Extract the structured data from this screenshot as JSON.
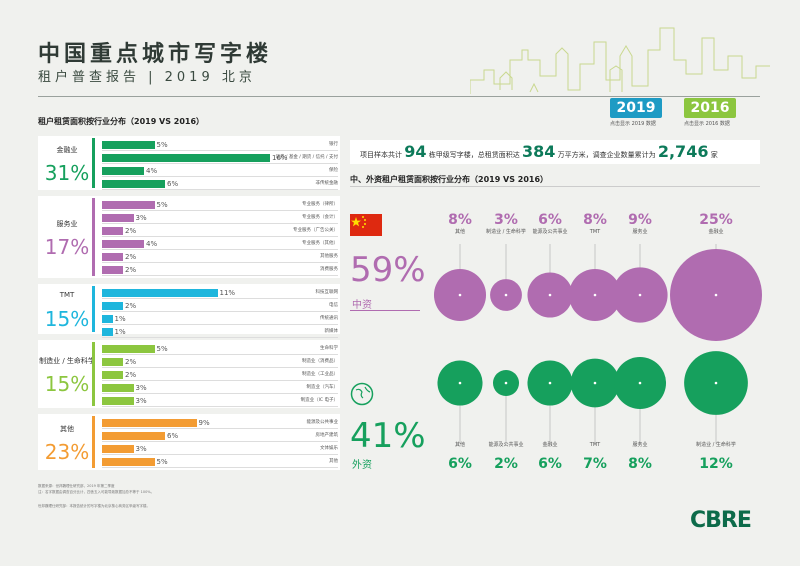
{
  "header": {
    "title": "中国重点城市写字楼",
    "subtitle": "租户普查报告 | 2019 北京"
  },
  "left_section_title": "租户租赁面积按行业分布（2019 VS 2016）",
  "right_section_title": "中、外资租户租赁面积按行业分布（2019 VS 2016）",
  "year_buttons": [
    {
      "label": "2019",
      "caption": "点击显示 2019 数据"
    },
    {
      "label": "2016",
      "caption": "点击显示 2016 数据"
    }
  ],
  "groups": [
    {
      "name": "金融业",
      "pct": "31%",
      "color": "#16a05d",
      "rows": [
        {
          "value": "5%",
          "pct": 5,
          "name": "银行"
        },
        {
          "value": "16%",
          "pct": 16,
          "name": "证券 / 基金 / 期货 / 信托 / 支付"
        },
        {
          "value": "4%",
          "pct": 4,
          "name": "保险"
        },
        {
          "value": "6%",
          "pct": 6,
          "name": "非传统金融"
        }
      ]
    },
    {
      "name": "服务业",
      "pct": "17%",
      "color": "#b06cb0",
      "rows": [
        {
          "value": "5%",
          "pct": 5,
          "name": "专业服务（律所）"
        },
        {
          "value": "3%",
          "pct": 3,
          "name": "专业服务（会计）"
        },
        {
          "value": "2%",
          "pct": 2,
          "name": "专业服务（广告公关）"
        },
        {
          "value": "4%",
          "pct": 4,
          "name": "专业服务（其他）"
        },
        {
          "value": "2%",
          "pct": 2,
          "name": "其他服务"
        },
        {
          "value": "2%",
          "pct": 2,
          "name": "消费服务"
        }
      ]
    },
    {
      "name": "TMT",
      "pct": "15%",
      "color": "#1eb6dd",
      "rows": [
        {
          "value": "11%",
          "pct": 11,
          "name": "科技互联网"
        },
        {
          "value": "2%",
          "pct": 2,
          "name": "电信"
        },
        {
          "value": "1%",
          "pct": 1,
          "name": "传统通讯"
        },
        {
          "value": "1%",
          "pct": 1,
          "name": "新媒体"
        }
      ]
    },
    {
      "name": "制造业 / 生命科学",
      "pct": "15%",
      "color": "#8cc63f",
      "rows": [
        {
          "value": "5%",
          "pct": 5,
          "name": "生命科学"
        },
        {
          "value": "2%",
          "pct": 2,
          "name": "制造业（消费品）"
        },
        {
          "value": "2%",
          "pct": 2,
          "name": "制造业（工业品）"
        },
        {
          "value": "3%",
          "pct": 3,
          "name": "制造业（汽车）"
        },
        {
          "value": "3%",
          "pct": 3,
          "name": "制造业（IC 电子）"
        }
      ]
    },
    {
      "name": "其他",
      "pct": "23%",
      "color": "#f39c33",
      "rows": [
        {
          "value": "9%",
          "pct": 9,
          "name": "能源及公共事业"
        },
        {
          "value": "6%",
          "pct": 6,
          "name": "房地产建筑"
        },
        {
          "value": "3%",
          "pct": 3,
          "name": "文体娱乐"
        },
        {
          "value": "5%",
          "pct": 5,
          "name": "其他"
        }
      ]
    }
  ],
  "summary": {
    "prefix": "项目样本共计",
    "buildings": "94",
    "mid1": "栋甲级写字楼，总租赁面积达",
    "area": "384",
    "mid2": "万平方米，调查企业数量累计为",
    "companies": "2,746",
    "suffix": "家"
  },
  "domestic": {
    "pct": "59%",
    "label": "中资",
    "color": "#b06cb0",
    "items": [
      {
        "value": "8%",
        "pct": 8,
        "name": "其他"
      },
      {
        "value": "3%",
        "pct": 3,
        "name": "制造业 / 生命科学"
      },
      {
        "value": "6%",
        "pct": 6,
        "name": "能源及公共事业"
      },
      {
        "value": "8%",
        "pct": 8,
        "name": "TMT"
      },
      {
        "value": "9%",
        "pct": 9,
        "name": "服务业"
      },
      {
        "value": "25%",
        "pct": 25,
        "name": "金融业"
      }
    ]
  },
  "foreign": {
    "pct": "41%",
    "label": "外资",
    "color": "#16a05d",
    "items": [
      {
        "value": "6%",
        "pct": 6,
        "name": "其他"
      },
      {
        "value": "2%",
        "pct": 2,
        "name": "能源及公共事业"
      },
      {
        "value": "6%",
        "pct": 6,
        "name": "金融业"
      },
      {
        "value": "7%",
        "pct": 7,
        "name": "TMT"
      },
      {
        "value": "8%",
        "pct": 8,
        "name": "服务业"
      },
      {
        "value": "12%",
        "pct": 12,
        "name": "制造业 / 生命科学"
      }
    ]
  },
  "notes": [
    "数据来源：世邦魏理仕研究部，2019 年第二季度",
    "注：名字数据由调查百分比计，四舍五入可能导致数据加总不等于 100%。",
    "世邦魏理仕研究部：本报告统计的写字楼为北京核心商务区甲级写字楼。"
  ],
  "logo": "CBRE"
}
